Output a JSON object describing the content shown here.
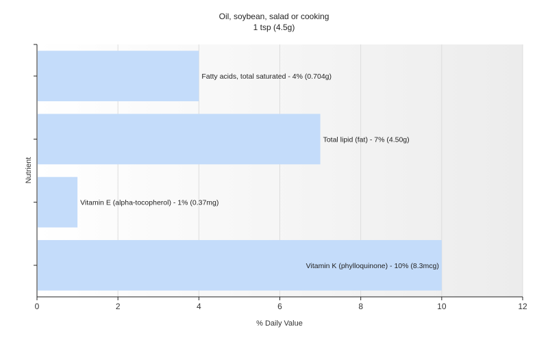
{
  "chart_data": {
    "type": "bar",
    "orientation": "horizontal",
    "title": "Oil, soybean, salad or cooking",
    "subtitle": "1 tsp (4.5g)",
    "xlabel": "% Daily Value",
    "ylabel": "Nutrient",
    "xlim": [
      0,
      12
    ],
    "x_ticks": [
      0,
      2,
      4,
      6,
      8,
      10,
      12
    ],
    "grid": true,
    "legend": "none",
    "bar_color": "#c4dcfa",
    "categories": [
      "Fatty acids, total saturated",
      "Total lipid (fat)",
      "Vitamin E (alpha-tocopherol)",
      "Vitamin K (phylloquinone)"
    ],
    "values": [
      4,
      7,
      1,
      10
    ],
    "data_labels": [
      "Fatty acids, total saturated - 4% (0.704g)",
      "Total lipid (fat) - 7% (4.50g)",
      "Vitamin E (alpha-tocopherol) - 1% (0.37mg)",
      "Vitamin K (phylloquinone) - 10% (8.3mcg)"
    ]
  }
}
